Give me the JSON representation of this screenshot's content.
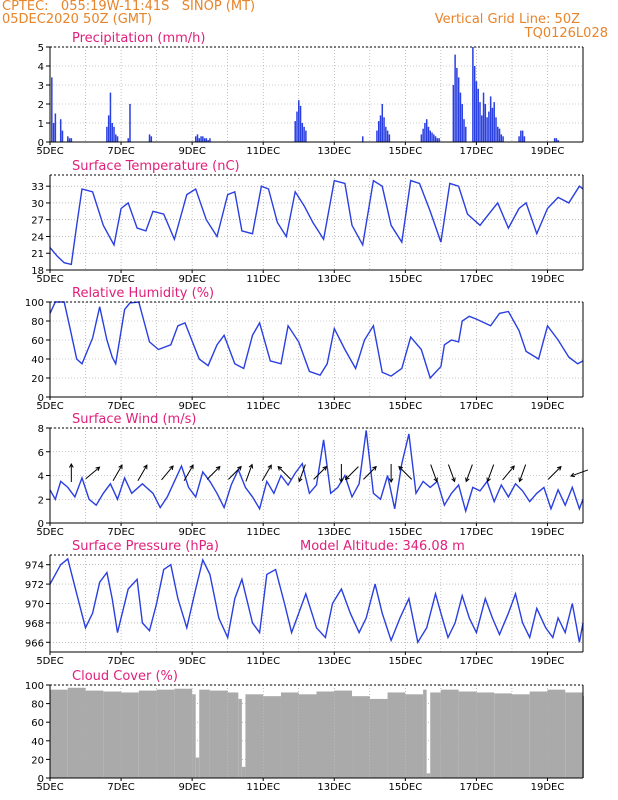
{
  "header": {
    "line1_left": "CPTEC:   055:19W-11:41S   SINOP (MT)",
    "line2_left": "05DEC2020 50Z (GMT)",
    "line1_right": "Vertical Grid Line: 50Z",
    "line2_right": "TQ0126L028"
  },
  "colors": {
    "accent": "#e8842a",
    "title": "#e0207a",
    "line": "#2a3fe0",
    "bar": "#2a3fe0",
    "cloud": "#aaaaaa",
    "grid": "#999999"
  },
  "x_axis": {
    "ticks": [
      "5DEC",
      "7DEC",
      "9DEC",
      "11DEC",
      "13DEC",
      "15DEC",
      "17DEC",
      "19DEC"
    ],
    "days": 15
  },
  "chart_data": [
    {
      "id": "precip",
      "type": "bar",
      "title": "Precipitation (mm/h)",
      "ylim": [
        0,
        5
      ],
      "yticks": [
        0,
        1,
        2,
        3,
        4,
        5
      ],
      "x": [
        0.05,
        0.1,
        0.15,
        0.3,
        0.35,
        0.5,
        0.55,
        0.6,
        1.6,
        1.65,
        1.7,
        1.75,
        1.8,
        1.85,
        1.9,
        2.2,
        2.25,
        2.8,
        2.85,
        4.1,
        4.15,
        4.2,
        4.25,
        4.3,
        4.35,
        4.4,
        4.45,
        4.5,
        6.9,
        6.95,
        7.0,
        7.05,
        7.1,
        7.15,
        7.2,
        8.8,
        9.2,
        9.25,
        9.3,
        9.35,
        9.4,
        9.45,
        9.5,
        9.55,
        10.45,
        10.5,
        10.55,
        10.6,
        10.65,
        10.7,
        10.75,
        10.8,
        10.85,
        10.9,
        10.95,
        11.35,
        11.4,
        11.45,
        11.5,
        11.55,
        11.6,
        11.65,
        11.7,
        11.9,
        11.95,
        12.0,
        12.05,
        12.1,
        12.15,
        12.2,
        12.25,
        12.3,
        12.35,
        12.4,
        12.45,
        12.5,
        12.55,
        12.6,
        12.65,
        12.7,
        12.75,
        13.2,
        13.25,
        13.3,
        13.35,
        14.2,
        14.25,
        14.3
      ],
      "values": [
        3.4,
        1.0,
        1.5,
        1.2,
        0.6,
        0.3,
        0.2,
        0.2,
        0.8,
        1.4,
        2.6,
        1.0,
        0.8,
        0.4,
        0.3,
        0.2,
        2.0,
        0.4,
        0.3,
        0.3,
        0.4,
        0.2,
        0.3,
        0.3,
        0.2,
        0.2,
        0.1,
        0.2,
        1.1,
        1.6,
        2.2,
        1.9,
        1.0,
        0.8,
        0.6,
        0.3,
        0.6,
        1.1,
        1.4,
        2.0,
        1.3,
        0.8,
        0.6,
        0.4,
        0.4,
        0.7,
        1.0,
        1.2,
        0.8,
        0.6,
        0.5,
        0.4,
        0.3,
        0.2,
        0.2,
        3.0,
        4.6,
        3.9,
        3.4,
        2.6,
        2.0,
        1.2,
        0.8,
        5.0,
        4.0,
        3.2,
        2.8,
        2.1,
        1.4,
        2.6,
        2.0,
        1.3,
        1.6,
        2.4,
        1.8,
        2.1,
        1.3,
        0.8,
        0.7,
        0.4,
        0.3,
        0.3,
        0.6,
        0.6,
        0.3,
        0.2,
        0.2,
        0.1
      ]
    },
    {
      "id": "temp",
      "type": "line",
      "title": "Surface Temperature (nC)",
      "ylim": [
        18,
        35
      ],
      "yticks": [
        18,
        21,
        24,
        27,
        30,
        33
      ],
      "x": [
        0,
        0.2,
        0.4,
        0.6,
        0.75,
        0.9,
        1.2,
        1.5,
        1.8,
        2.0,
        2.2,
        2.45,
        2.7,
        2.9,
        3.2,
        3.5,
        3.85,
        4.1,
        4.4,
        4.7,
        5.0,
        5.2,
        5.4,
        5.7,
        5.95,
        6.15,
        6.4,
        6.65,
        6.9,
        7.15,
        7.4,
        7.7,
        8.0,
        8.3,
        8.5,
        8.8,
        9.1,
        9.35,
        9.6,
        9.9,
        10.15,
        10.4,
        10.7,
        11.0,
        11.25,
        11.5,
        11.75,
        12.1,
        12.35,
        12.6,
        12.9,
        13.2,
        13.4,
        13.7,
        14.0,
        14.3,
        14.6,
        14.9,
        15.0
      ],
      "values": [
        22,
        20.5,
        19.3,
        19.0,
        26,
        32.5,
        32,
        26,
        22.5,
        29,
        30,
        25.5,
        25,
        28.5,
        28,
        23.5,
        31.5,
        32.5,
        27,
        24,
        31.5,
        32,
        25,
        24.5,
        33,
        32.5,
        26.5,
        24,
        32,
        29.5,
        26.5,
        23.5,
        34,
        33.5,
        26,
        22.5,
        34,
        33,
        26,
        23,
        34,
        33.5,
        28.5,
        23,
        33.5,
        33,
        28,
        26,
        28,
        30,
        25.5,
        29,
        30,
        24.5,
        29,
        31,
        30,
        33,
        32.5
      ]
    },
    {
      "id": "rh",
      "type": "line",
      "title": "Relative Humidity (%)",
      "ylim": [
        0,
        100
      ],
      "yticks": [
        0,
        20,
        40,
        60,
        80,
        100
      ],
      "x": [
        0,
        0.15,
        0.4,
        0.55,
        0.75,
        0.9,
        1.2,
        1.4,
        1.6,
        1.75,
        1.85,
        2.1,
        2.25,
        2.5,
        2.8,
        3.05,
        3.4,
        3.6,
        3.8,
        4.2,
        4.45,
        4.7,
        4.9,
        5.2,
        5.45,
        5.7,
        5.9,
        6.2,
        6.5,
        6.7,
        7.0,
        7.3,
        7.6,
        7.8,
        8.0,
        8.3,
        8.6,
        8.85,
        9.1,
        9.35,
        9.6,
        9.9,
        10.15,
        10.45,
        10.7,
        11.0,
        11.1,
        11.3,
        11.5,
        11.6,
        11.8,
        12.0,
        12.4,
        12.65,
        12.9,
        13.2,
        13.4,
        13.75,
        14.0,
        14.3,
        14.6,
        14.85,
        15.0
      ],
      "values": [
        88,
        100,
        100,
        75,
        40,
        35,
        62,
        95,
        60,
        42,
        35,
        92,
        99,
        100,
        58,
        50,
        55,
        75,
        78,
        40,
        33,
        55,
        65,
        35,
        30,
        65,
        78,
        38,
        35,
        75,
        58,
        27,
        23,
        35,
        72,
        50,
        30,
        60,
        75,
        26,
        22,
        30,
        63,
        50,
        20,
        32,
        55,
        60,
        58,
        80,
        85,
        82,
        75,
        88,
        90,
        70,
        48,
        40,
        75,
        60,
        42,
        35,
        38
      ]
    },
    {
      "id": "wind",
      "type": "line",
      "title": "Surface Wind (m/s)",
      "ylim": [
        0,
        8
      ],
      "yticks": [
        0,
        2,
        4,
        6,
        8
      ],
      "x": [
        0,
        0.15,
        0.3,
        0.5,
        0.7,
        0.9,
        1.1,
        1.3,
        1.5,
        1.7,
        1.9,
        2.1,
        2.3,
        2.6,
        2.9,
        3.1,
        3.3,
        3.5,
        3.7,
        3.9,
        4.1,
        4.3,
        4.5,
        4.7,
        4.9,
        5.1,
        5.3,
        5.5,
        5.7,
        5.9,
        6.1,
        6.3,
        6.5,
        6.7,
        6.9,
        7.1,
        7.3,
        7.5,
        7.7,
        7.9,
        8.1,
        8.3,
        8.5,
        8.7,
        8.9,
        9.1,
        9.3,
        9.5,
        9.7,
        9.9,
        10.1,
        10.3,
        10.5,
        10.7,
        10.9,
        11.1,
        11.3,
        11.5,
        11.7,
        11.9,
        12.1,
        12.3,
        12.5,
        12.7,
        12.9,
        13.1,
        13.3,
        13.5,
        13.7,
        13.9,
        14.1,
        14.3,
        14.5,
        14.7,
        14.9,
        15.0
      ],
      "values": [
        2.8,
        2.0,
        3.5,
        3.0,
        2.2,
        3.8,
        2.0,
        1.5,
        2.5,
        3.3,
        2.0,
        3.8,
        2.5,
        3.3,
        2.5,
        1.3,
        2.2,
        3.5,
        4.8,
        3.0,
        2.2,
        4.3,
        3.5,
        2.5,
        1.3,
        3.2,
        4.5,
        3.0,
        2.2,
        1.2,
        3.5,
        2.5,
        4.0,
        3.2,
        4.2,
        5.0,
        2.5,
        3.2,
        7.0,
        2.5,
        3.0,
        4.0,
        2.2,
        3.3,
        7.8,
        2.5,
        2.0,
        4.0,
        1.2,
        5.0,
        7.5,
        2.5,
        3.5,
        3.0,
        3.5,
        1.5,
        2.5,
        3.2,
        1.0,
        3.0,
        2.7,
        3.5,
        1.8,
        3.2,
        2.2,
        3.3,
        2.7,
        1.8,
        2.5,
        3.0,
        1.2,
        2.8,
        1.5,
        3.0,
        1.2,
        2.0
      ],
      "arrows_x": [
        0.6,
        1.2,
        1.9,
        2.6,
        3.3,
        3.9,
        4.6,
        5.2,
        5.6,
        6.1,
        6.6,
        7.1,
        7.6,
        8.2,
        8.5,
        9.0,
        9.6,
        10.0,
        10.8,
        11.3,
        11.8,
        12.4,
        12.9,
        13.3,
        14.2,
        14.9
      ],
      "arrows_deg": [
        0,
        50,
        30,
        30,
        40,
        30,
        45,
        45,
        20,
        30,
        315,
        200,
        45,
        180,
        225,
        45,
        180,
        315,
        160,
        160,
        200,
        200,
        40,
        200,
        45,
        250
      ]
    },
    {
      "id": "pres",
      "type": "line",
      "title": "Surface Pressure (hPa)",
      "annotation": "Model Altitude: 346.08 m",
      "ylim": [
        965,
        975
      ],
      "yticks": [
        966,
        968,
        970,
        972,
        974
      ],
      "x": [
        0,
        0.3,
        0.5,
        0.75,
        1.0,
        1.2,
        1.4,
        1.6,
        1.75,
        1.9,
        2.2,
        2.45,
        2.6,
        2.8,
        3.0,
        3.2,
        3.4,
        3.6,
        3.85,
        4.1,
        4.3,
        4.5,
        4.75,
        5.0,
        5.2,
        5.4,
        5.7,
        5.9,
        6.1,
        6.35,
        6.6,
        6.8,
        7.0,
        7.2,
        7.5,
        7.75,
        7.95,
        8.2,
        8.45,
        8.7,
        8.9,
        9.15,
        9.35,
        9.6,
        9.85,
        10.1,
        10.35,
        10.6,
        10.85,
        11.0,
        11.2,
        11.4,
        11.6,
        11.8,
        12.0,
        12.25,
        12.45,
        12.65,
        12.9,
        13.1,
        13.3,
        13.5,
        13.7,
        13.95,
        14.15,
        14.3,
        14.5,
        14.7,
        14.9,
        15.0
      ],
      "values": [
        972,
        974,
        974.6,
        971,
        967.5,
        969,
        972.2,
        973.2,
        970.5,
        967,
        971.5,
        972.5,
        968,
        967.2,
        970,
        973.5,
        974,
        970.5,
        967.5,
        971.5,
        974.5,
        973,
        968.5,
        966.5,
        970.5,
        972.5,
        968,
        967,
        973,
        973.5,
        970,
        967,
        969,
        971,
        967.5,
        966.5,
        970,
        971.5,
        969,
        967,
        968.5,
        972,
        969,
        966.2,
        968.5,
        970.5,
        966,
        967.5,
        971,
        969,
        966.5,
        968,
        970.8,
        968.5,
        967,
        970.5,
        968.5,
        966.8,
        969,
        971,
        968,
        966.5,
        969.5,
        967.5,
        966.5,
        968.5,
        967,
        970,
        966,
        968
      ]
    },
    {
      "id": "cloud",
      "type": "area",
      "title": "Cloud Cover (%)",
      "ylim": [
        0,
        100
      ],
      "yticks": [
        0,
        20,
        40,
        60,
        80,
        100
      ],
      "x": [
        0,
        0.5,
        1.0,
        1.5,
        2.0,
        2.5,
        3.0,
        3.5,
        4.0,
        4.1,
        4.2,
        4.5,
        5.0,
        5.3,
        5.4,
        5.5,
        6.0,
        6.5,
        7.0,
        7.5,
        8.0,
        8.5,
        9.0,
        9.5,
        10.0,
        10.5,
        10.6,
        10.7,
        11.0,
        11.5,
        12.0,
        12.5,
        13.0,
        13.5,
        14.0,
        14.5,
        15.0
      ],
      "values": [
        95,
        97,
        94,
        93,
        92,
        94,
        95,
        96,
        90,
        22,
        95,
        94,
        92,
        85,
        12,
        90,
        88,
        92,
        90,
        93,
        94,
        88,
        85,
        92,
        90,
        95,
        5,
        92,
        95,
        93,
        92,
        91,
        90,
        93,
        95,
        92,
        88
      ]
    }
  ]
}
